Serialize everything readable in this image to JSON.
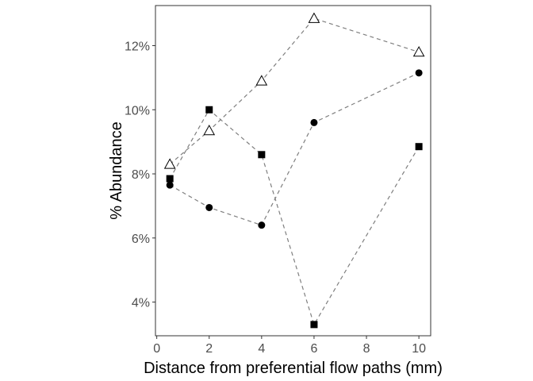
{
  "chart_data": {
    "type": "scatter",
    "xlabel": "Distance from preferential flow paths (mm)",
    "ylabel": "% Abundance",
    "xlim": [
      -0.05,
      10.45
    ],
    "ylim": [
      2.95,
      13.25
    ],
    "xticks": [
      0,
      2,
      4,
      6,
      8,
      10
    ],
    "xtick_labels": [
      "0",
      "2",
      "4",
      "6",
      "8",
      "10"
    ],
    "yticks": [
      4,
      6,
      8,
      10,
      12
    ],
    "ytick_labels": [
      "4%",
      "6%",
      "8%",
      "10%",
      "12%"
    ],
    "grid": false,
    "legend": "none",
    "line_style": "dashed",
    "line_color": "#7f7f7f",
    "series": [
      {
        "marker": "triangle-open",
        "x": [
          0.5,
          2,
          4,
          6,
          10
        ],
        "y": [
          8.3,
          9.35,
          10.9,
          12.85,
          11.8
        ]
      },
      {
        "marker": "circle",
        "x": [
          0.5,
          2,
          4,
          6,
          10
        ],
        "y": [
          7.65,
          6.95,
          6.4,
          9.6,
          11.15
        ]
      },
      {
        "marker": "square",
        "x": [
          0.5,
          2,
          4,
          6,
          10
        ],
        "y": [
          7.85,
          10.0,
          8.6,
          3.3,
          8.85
        ]
      }
    ]
  }
}
